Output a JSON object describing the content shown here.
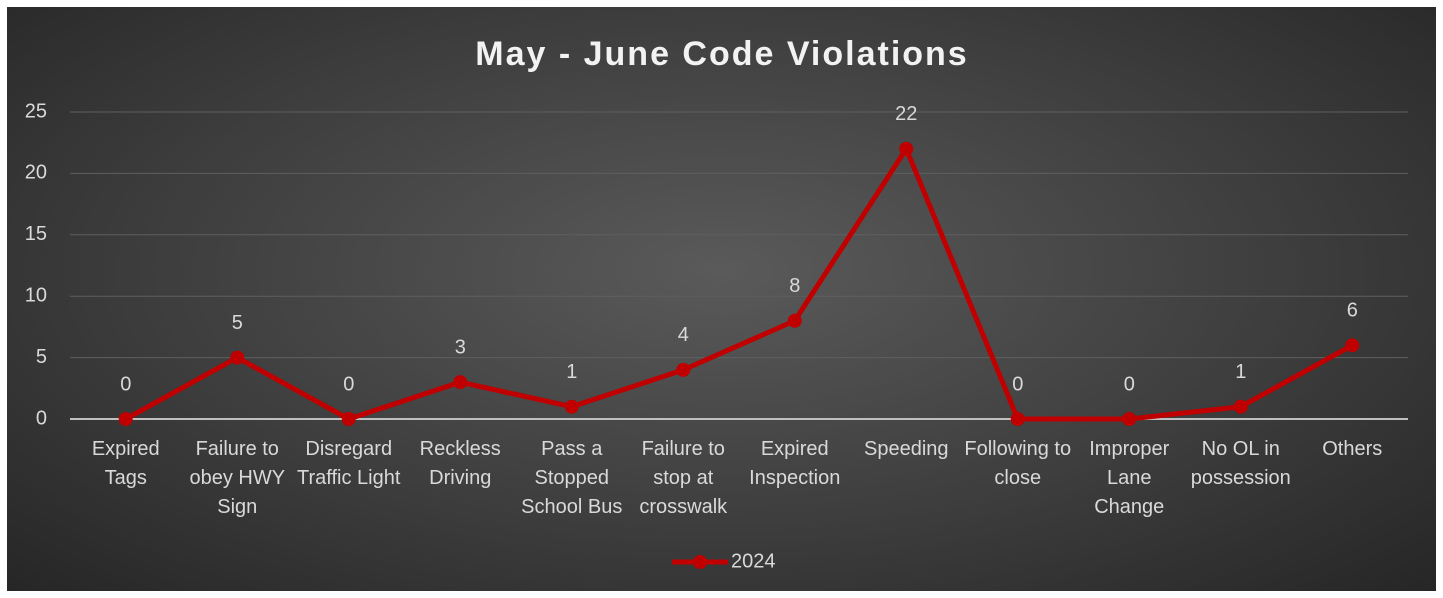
{
  "chart_data": {
    "type": "line",
    "title": "May - June Code Violations",
    "categories": [
      "Expired Tags",
      "Failure to obey HWY Sign",
      "Disregard Traffic Light",
      "Reckless Driving",
      "Pass a Stopped School Bus",
      "Failure to stop at crosswalk",
      "Expired Inspection",
      "Speeding",
      "Following to close",
      "Improper Lane Change",
      "No OL in possession",
      "Others"
    ],
    "series": [
      {
        "name": "2024",
        "color": "#c00000",
        "values": [
          0,
          5,
          0,
          3,
          1,
          4,
          8,
          22,
          0,
          0,
          1,
          6
        ]
      }
    ],
    "ylim": [
      0,
      25
    ],
    "yticks": [
      0,
      5,
      10,
      15,
      20,
      25
    ],
    "grid": true,
    "legend": "bottom"
  }
}
